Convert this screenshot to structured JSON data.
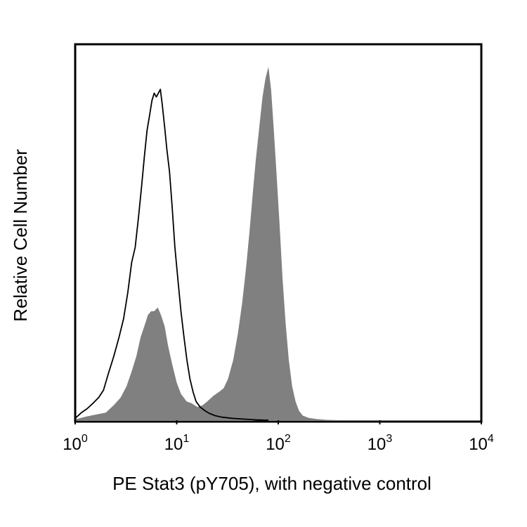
{
  "chart_data": {
    "type": "histogram-overlay",
    "title": "",
    "xlabel": "PE Stat3 (pY705), with negative control",
    "ylabel": "Relative Cell Number",
    "x_scale": "log10",
    "xlim": [
      1,
      10000
    ],
    "ylim": [
      0,
      1.0
    ],
    "x_ticks": [
      {
        "base": "10",
        "exp": "0",
        "value": 1
      },
      {
        "base": "10",
        "exp": "1",
        "value": 10
      },
      {
        "base": "10",
        "exp": "2",
        "value": 100
      },
      {
        "base": "10",
        "exp": "3",
        "value": 1000
      },
      {
        "base": "10",
        "exp": "4",
        "value": 10000
      }
    ],
    "series": [
      {
        "name": "negative control",
        "style": "outline",
        "color": "#000000",
        "points": [
          [
            1.0,
            0.005
          ],
          [
            1.15,
            0.02
          ],
          [
            1.3,
            0.03
          ],
          [
            1.5,
            0.045
          ],
          [
            1.7,
            0.06
          ],
          [
            1.9,
            0.08
          ],
          [
            2.1,
            0.12
          ],
          [
            2.4,
            0.17
          ],
          [
            2.7,
            0.22
          ],
          [
            3.0,
            0.27
          ],
          [
            3.3,
            0.34
          ],
          [
            3.6,
            0.42
          ],
          [
            3.9,
            0.46
          ],
          [
            4.2,
            0.54
          ],
          [
            4.5,
            0.62
          ],
          [
            4.8,
            0.7
          ],
          [
            5.1,
            0.77
          ],
          [
            5.4,
            0.81
          ],
          [
            5.7,
            0.85
          ],
          [
            6.0,
            0.87
          ],
          [
            6.3,
            0.86
          ],
          [
            6.6,
            0.87
          ],
          [
            6.9,
            0.88
          ],
          [
            7.2,
            0.84
          ],
          [
            7.6,
            0.78
          ],
          [
            8.0,
            0.72
          ],
          [
            8.5,
            0.66
          ],
          [
            9.0,
            0.57
          ],
          [
            9.6,
            0.46
          ],
          [
            10.3,
            0.37
          ],
          [
            11.0,
            0.29
          ],
          [
            11.8,
            0.22
          ],
          [
            12.6,
            0.16
          ],
          [
            13.5,
            0.11
          ],
          [
            14.5,
            0.075
          ],
          [
            15.5,
            0.05
          ],
          [
            17.0,
            0.035
          ],
          [
            19.0,
            0.025
          ],
          [
            21.0,
            0.018
          ],
          [
            24.0,
            0.012
          ],
          [
            28.0,
            0.008
          ],
          [
            35.0,
            0.005
          ],
          [
            45.0,
            0.003
          ],
          [
            60.0,
            0.001
          ],
          [
            80.0,
            0.0
          ]
        ]
      },
      {
        "name": "PE Stat3 (pY705)",
        "style": "filled",
        "color": "#808080",
        "points": [
          [
            1.0,
            0.002
          ],
          [
            1.3,
            0.01
          ],
          [
            1.6,
            0.015
          ],
          [
            2.0,
            0.02
          ],
          [
            2.4,
            0.04
          ],
          [
            2.8,
            0.06
          ],
          [
            3.2,
            0.09
          ],
          [
            3.6,
            0.13
          ],
          [
            4.0,
            0.17
          ],
          [
            4.4,
            0.22
          ],
          [
            4.8,
            0.25
          ],
          [
            5.2,
            0.28
          ],
          [
            5.6,
            0.29
          ],
          [
            6.0,
            0.29
          ],
          [
            6.5,
            0.3
          ],
          [
            7.0,
            0.28
          ],
          [
            7.6,
            0.25
          ],
          [
            8.2,
            0.2
          ],
          [
            9.0,
            0.15
          ],
          [
            10.0,
            0.1
          ],
          [
            11.0,
            0.07
          ],
          [
            12.5,
            0.05
          ],
          [
            14.0,
            0.045
          ],
          [
            16.0,
            0.035
          ],
          [
            18.0,
            0.04
          ],
          [
            20.0,
            0.05
          ],
          [
            23.0,
            0.065
          ],
          [
            26.0,
            0.075
          ],
          [
            29.0,
            0.085
          ],
          [
            32.0,
            0.11
          ],
          [
            36.0,
            0.16
          ],
          [
            40.0,
            0.23
          ],
          [
            44.0,
            0.31
          ],
          [
            48.0,
            0.4
          ],
          [
            52.0,
            0.5
          ],
          [
            56.0,
            0.6
          ],
          [
            60.0,
            0.69
          ],
          [
            65.0,
            0.78
          ],
          [
            70.0,
            0.86
          ],
          [
            75.0,
            0.91
          ],
          [
            80.0,
            0.94
          ],
          [
            85.0,
            0.88
          ],
          [
            90.0,
            0.78
          ],
          [
            96.0,
            0.66
          ],
          [
            103.0,
            0.52
          ],
          [
            110.0,
            0.38
          ],
          [
            118.0,
            0.26
          ],
          [
            127.0,
            0.16
          ],
          [
            137.0,
            0.09
          ],
          [
            148.0,
            0.05
          ],
          [
            160.0,
            0.025
          ],
          [
            175.0,
            0.012
          ],
          [
            200.0,
            0.006
          ],
          [
            240.0,
            0.003
          ],
          [
            300.0,
            0.001
          ],
          [
            400.0,
            0.0
          ]
        ]
      }
    ]
  }
}
